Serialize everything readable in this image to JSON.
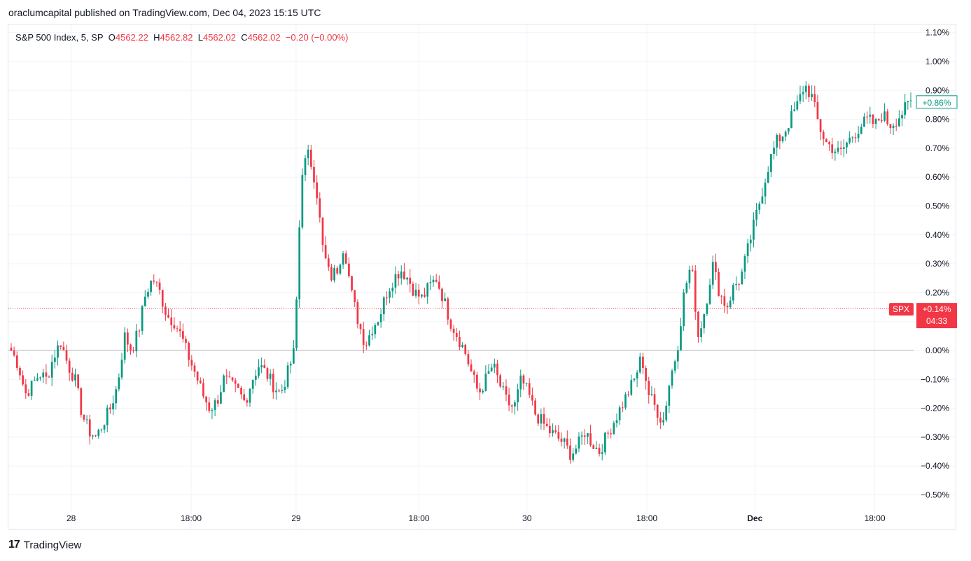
{
  "publisher": "oraclumcapital published on TradingView.com, Dec 04, 2023 15:15 UTC",
  "legend": {
    "symbol": "S&P 500 Index, 5, SP",
    "open_label": "O",
    "open": "4562.22",
    "high_label": "H",
    "high": "4562.82",
    "low_label": "L",
    "low": "4562.02",
    "close_label": "C",
    "close": "4562.02",
    "change": "−0.20 (−0.00%)"
  },
  "brand": "TradingView",
  "colors": {
    "up": "#089981",
    "down": "#f23645",
    "grid": "#f0f3fa",
    "zero": "#b2b5be"
  },
  "chart_data": {
    "type": "candlestick",
    "ylim": [
      -0.55,
      1.13
    ],
    "y_ticks": [
      "1.10%",
      "1.00%",
      "0.90%",
      "0.80%",
      "0.70%",
      "0.60%",
      "0.50%",
      "0.40%",
      "0.30%",
      "0.20%",
      "0.10%",
      "0.00%",
      "−0.10%",
      "−0.20%",
      "−0.30%",
      "−0.40%",
      "−0.50%"
    ],
    "y_tick_values": [
      1.1,
      1.0,
      0.9,
      0.8,
      0.7,
      0.6,
      0.5,
      0.4,
      0.3,
      0.2,
      0.1,
      0.0,
      -0.1,
      -0.2,
      -0.3,
      -0.4,
      -0.5
    ],
    "x_ticks": [
      {
        "label": "28",
        "bar": 20,
        "bold": false
      },
      {
        "label": "18:00",
        "bar": 60,
        "bold": false
      },
      {
        "label": "29",
        "bar": 95,
        "bold": false
      },
      {
        "label": "18:00",
        "bar": 136,
        "bold": false
      },
      {
        "label": "30",
        "bar": 172,
        "bold": false
      },
      {
        "label": "18:00",
        "bar": 212,
        "bold": false
      },
      {
        "label": "Dec",
        "bar": 248,
        "bold": true
      },
      {
        "label": "18:00",
        "bar": 288,
        "bold": false
      }
    ],
    "series_close_path": [
      0.0,
      -0.05,
      -0.15,
      -0.12,
      -0.08,
      -0.1,
      -0.02,
      0.03,
      -0.05,
      -0.1,
      -0.22,
      -0.28,
      -0.3,
      -0.25,
      -0.2,
      -0.12,
      0.05,
      0.0,
      0.07,
      0.2,
      0.25,
      0.2,
      0.12,
      0.1,
      0.05,
      -0.02,
      -0.08,
      -0.15,
      -0.2,
      -0.18,
      -0.1,
      -0.12,
      -0.14,
      -0.18,
      -0.1,
      -0.05,
      -0.08,
      -0.12,
      -0.15,
      -0.08,
      0.0,
      0.62,
      0.68,
      0.58,
      0.35,
      0.25,
      0.28,
      0.37,
      0.2,
      0.1,
      0.02,
      0.08,
      0.12,
      0.2,
      0.25,
      0.28,
      0.25,
      0.2,
      0.18,
      0.22,
      0.25,
      0.18,
      0.1,
      0.05,
      0.0,
      -0.08,
      -0.15,
      -0.1,
      -0.05,
      -0.12,
      -0.18,
      -0.2,
      -0.1,
      -0.15,
      -0.22,
      -0.25,
      -0.28,
      -0.3,
      -0.32,
      -0.36,
      -0.33,
      -0.28,
      -0.32,
      -0.35,
      -0.3,
      -0.25,
      -0.2,
      -0.15,
      -0.1,
      -0.02,
      -0.15,
      -0.2,
      -0.25,
      -0.1,
      0.0,
      0.2,
      0.3,
      0.05,
      0.15,
      0.3,
      0.2,
      0.15,
      0.22,
      0.25,
      0.35,
      0.45,
      0.55,
      0.65,
      0.72,
      0.75,
      0.8,
      0.85,
      0.92,
      0.88,
      0.78,
      0.72,
      0.7,
      0.68,
      0.72,
      0.75,
      0.78,
      0.8,
      0.78,
      0.82,
      0.78,
      0.8,
      0.83,
      0.86
    ],
    "last_change_label": "+0.86%",
    "last_change_value": 0.86,
    "current_price_label": "+0.14%",
    "current_price_value": 0.145,
    "countdown": "04:33",
    "symbol_tag": "SPX"
  }
}
